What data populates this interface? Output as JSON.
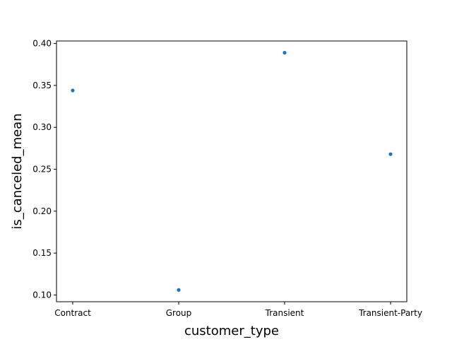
{
  "chart_data": {
    "type": "scatter",
    "title": "",
    "xlabel": "customer_type",
    "ylabel": "is_canceled_mean",
    "categories": [
      "Contract",
      "Group",
      "Transient",
      "Transient-Party"
    ],
    "series": [
      {
        "values": [
          0.344,
          0.106,
          0.389,
          0.268
        ]
      }
    ],
    "ylim": [
      0.092,
      0.403
    ],
    "yticks": [
      "0.10",
      "0.15",
      "0.20",
      "0.25",
      "0.30",
      "0.35",
      "0.40"
    ],
    "ytick_values": [
      0.1,
      0.15,
      0.2,
      0.25,
      0.3,
      0.35,
      0.4
    ],
    "grid": false,
    "marker_color": "#1f77b4"
  }
}
